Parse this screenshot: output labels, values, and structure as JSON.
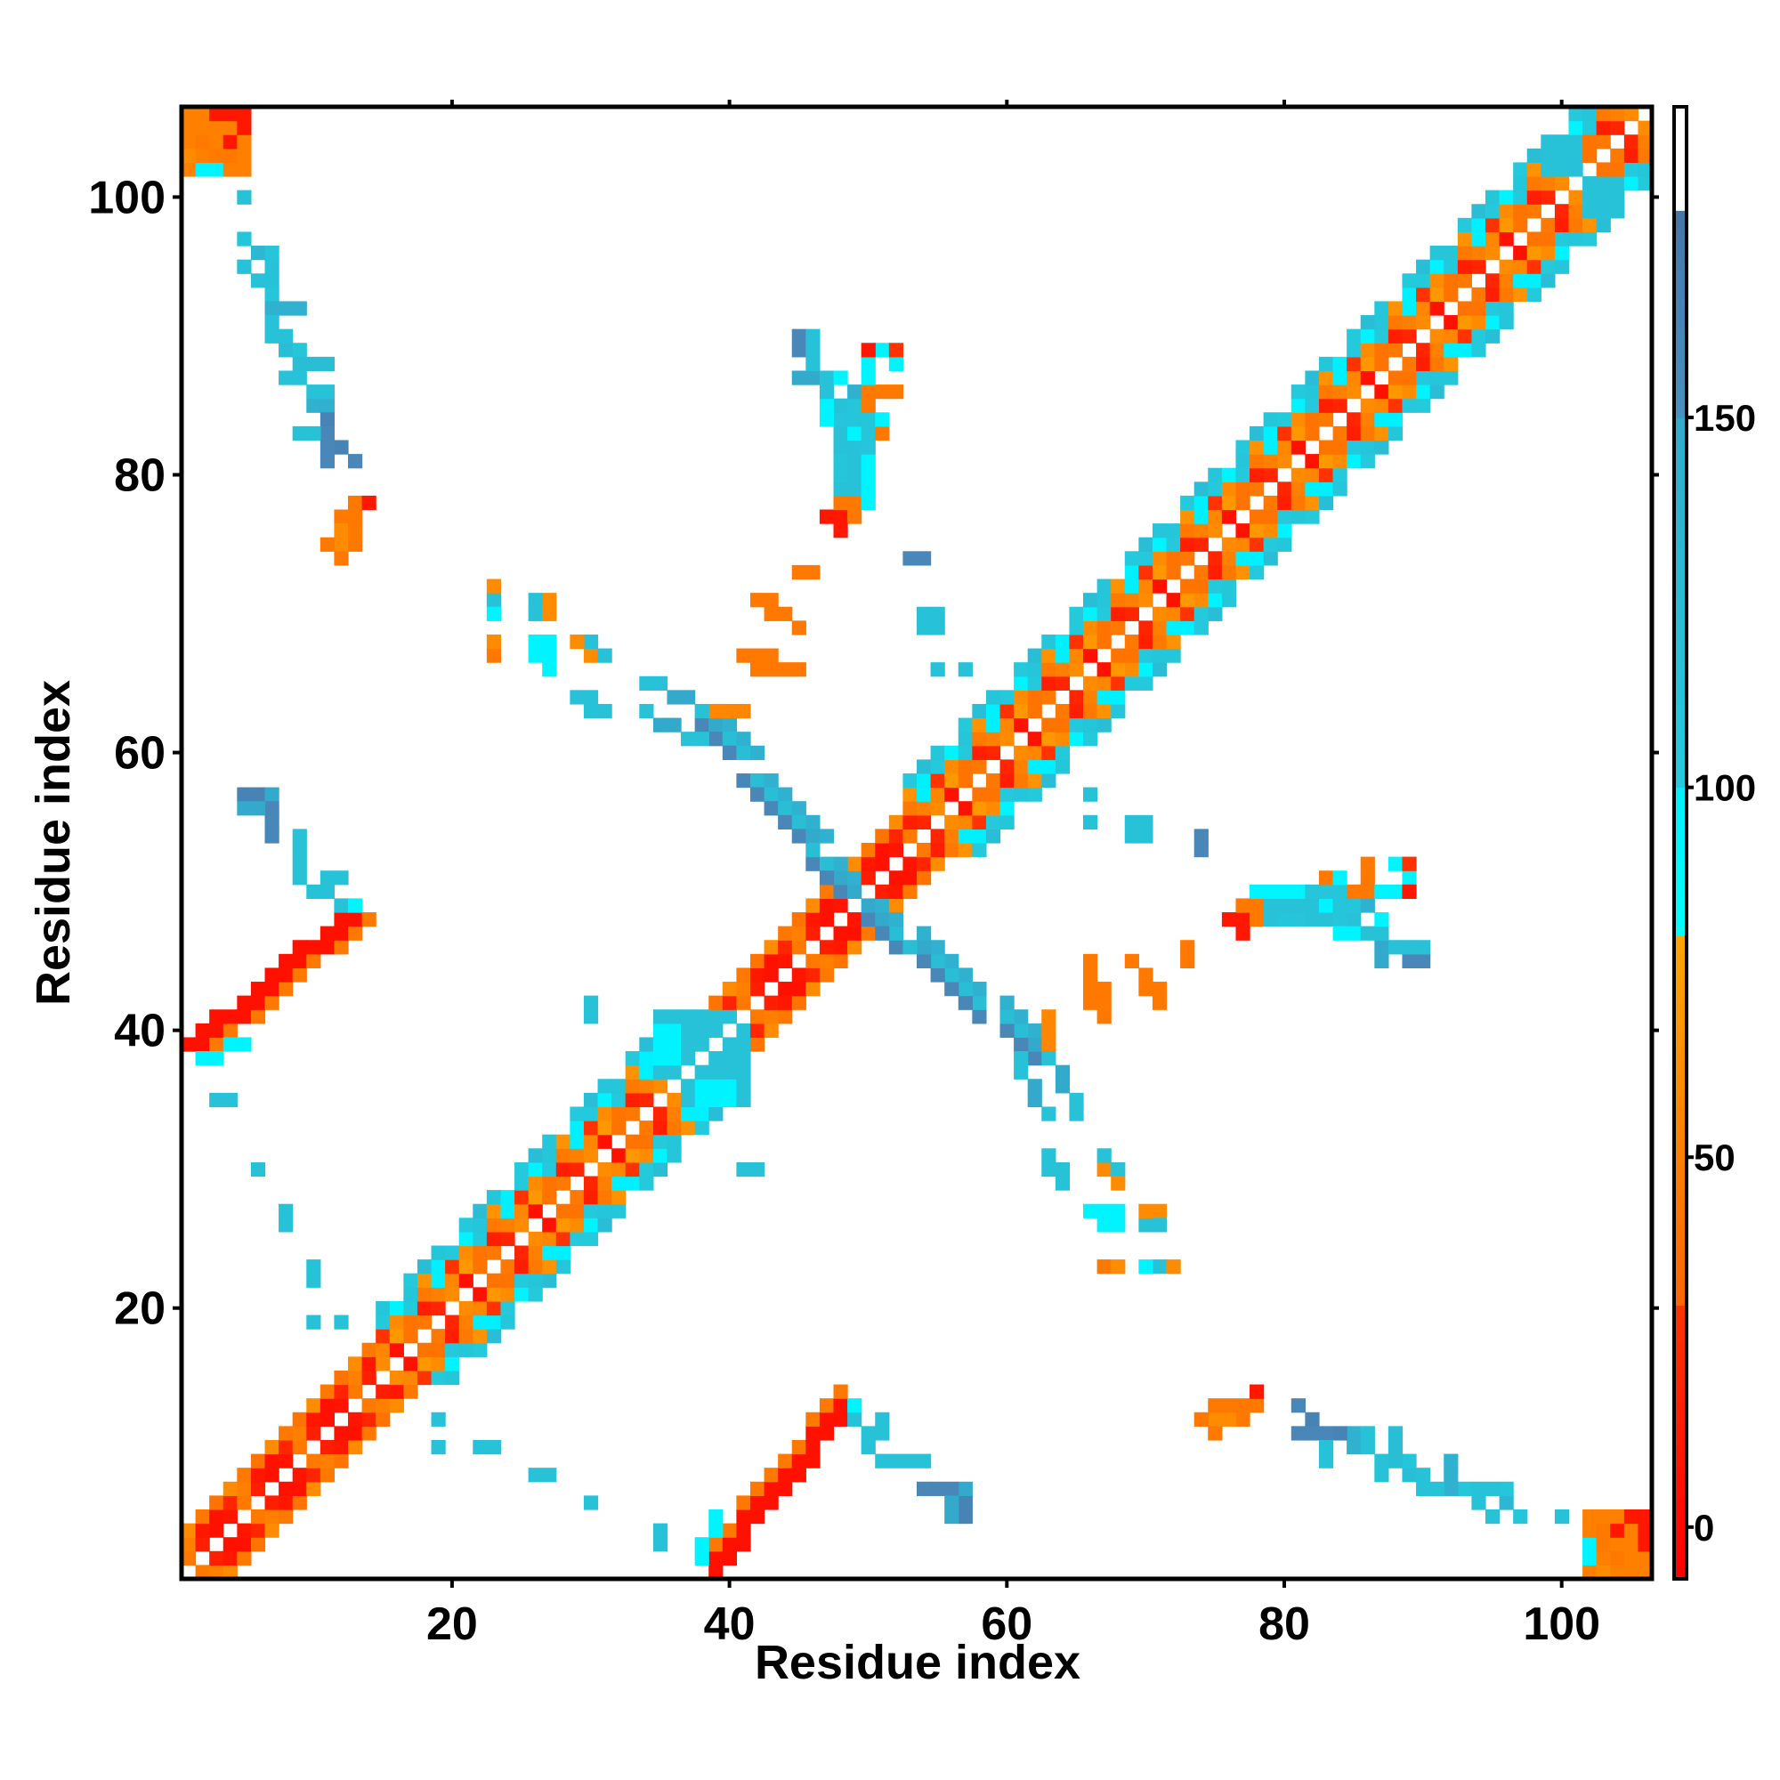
{
  "chart_data": {
    "type": "heatmap",
    "title": "",
    "xlabel": "Residue index",
    "ylabel": "Residue index",
    "n_residues": 106,
    "xlim": [
      0.5,
      106.5
    ],
    "ylim": [
      0.5,
      106.5
    ],
    "xticks": [
      "20",
      "40",
      "60",
      "80",
      "100"
    ],
    "xtick_values": [
      20,
      40,
      60,
      80,
      100
    ],
    "yticks": [
      "20",
      "40",
      "60",
      "80",
      "100"
    ],
    "ytick_values": [
      20,
      40,
      60,
      80,
      100
    ],
    "symmetric": true,
    "colorbar": {
      "range": [
        -7,
        192
      ],
      "ticks": [
        "0",
        "50",
        "100",
        "150"
      ],
      "tick_values": [
        0,
        50,
        100,
        150
      ],
      "stops": [
        {
          "from": -7,
          "to": 30,
          "colors": [
            "#ff0000",
            "#ff3300"
          ]
        },
        {
          "from": 30,
          "to": 80,
          "colors": [
            "#ff6600",
            "#ffa500"
          ]
        },
        {
          "from": 80,
          "to": 100,
          "colors": [
            "#00ffff",
            "#00f0ff"
          ]
        },
        {
          "from": 100,
          "to": 150,
          "colors": [
            "#22ccdd",
            "#33aacc"
          ]
        },
        {
          "from": 150,
          "to": 178,
          "colors": [
            "#4a90c0",
            "#4477aa"
          ]
        },
        {
          "from": 178,
          "to": 192,
          "colors": [
            "#ffffff",
            "#ffffff"
          ]
        }
      ]
    },
    "diagonal_segments": [
      {
        "range": [
          1,
          14
        ],
        "pattern": "strand"
      },
      {
        "range": [
          15,
          36
        ],
        "pattern": "helix"
      },
      {
        "range": [
          37,
          47
        ],
        "pattern": "strand"
      },
      {
        "range": [
          48,
          52
        ],
        "pattern": "strand"
      },
      {
        "range": [
          53,
          106
        ],
        "pattern": "helix"
      }
    ],
    "patterns": {
      "strand": [
        [
          5,
          15,
          45,
          8
        ],
        [
          10,
          50,
          20,
          5
        ],
        [
          40,
          60,
          45
        ]
      ],
      "helix": [
        [
          5,
          20,
          40,
          60,
          45
        ],
        [
          40,
          55,
          15,
          70,
          50
        ],
        [
          45,
          60,
          100,
          105,
          30
        ],
        [
          100,
          110,
          105,
          65,
          95
        ],
        [
          110,
          120,
          105,
          0
        ]
      ]
    },
    "parallel_strips": [
      {
        "x": [
          1,
          12
        ],
        "y": [
          39,
          48
        ],
        "width": 3,
        "inner_value": 5,
        "outer_value": 45
      }
    ],
    "anti_strips": [
      {
        "x": [
          38,
          48
        ],
        "y": [
          62,
          50
        ],
        "width": 3,
        "value": 160
      },
      {
        "x": [
          40,
          47
        ],
        "y": [
          61,
          52
        ],
        "width": 1,
        "value": 120
      }
    ],
    "blocks": [
      [
        1,
        5,
        102,
        106,
        50
      ],
      [
        3,
        5,
        106,
        106,
        10
      ],
      [
        2,
        3,
        102,
        102,
        110
      ],
      [
        35,
        41,
        37,
        41,
        115
      ],
      [
        38,
        40,
        35,
        36,
        95
      ],
      [
        39,
        41,
        63,
        63,
        55
      ],
      [
        42,
        45,
        66,
        66,
        45
      ],
      [
        50,
        52,
        86,
        86,
        45
      ],
      [
        48,
        50,
        80,
        85,
        110
      ],
      [
        49,
        50,
        78,
        81,
        95
      ],
      [
        99,
        101,
        102,
        104,
        115
      ]
    ],
    "cells": [
      [
        5,
        100,
        120
      ],
      [
        5,
        97,
        110
      ],
      [
        6,
        96,
        130
      ],
      [
        7,
        96,
        110
      ],
      [
        7,
        93,
        110
      ],
      [
        7,
        92,
        140
      ],
      [
        8,
        92,
        140
      ],
      [
        9,
        92,
        140
      ],
      [
        8,
        89,
        120
      ],
      [
        9,
        89,
        110
      ],
      [
        9,
        88,
        120
      ],
      [
        10,
        88,
        120
      ],
      [
        11,
        88,
        120
      ],
      [
        10,
        85,
        140
      ],
      [
        11,
        85,
        140
      ],
      [
        11,
        84,
        165
      ],
      [
        12,
        82,
        165
      ],
      [
        12,
        77,
        45
      ],
      [
        12,
        76,
        40
      ],
      [
        13,
        77,
        15
      ],
      [
        12,
        75,
        60
      ],
      [
        11,
        75,
        45
      ],
      [
        12,
        74,
        45
      ],
      [
        13,
        78,
        45
      ],
      [
        5,
        57,
        165
      ],
      [
        6,
        57,
        165
      ],
      [
        7,
        57,
        150
      ],
      [
        7,
        56,
        165
      ],
      [
        7,
        55,
        165
      ],
      [
        9,
        52,
        115
      ],
      [
        9,
        51,
        115
      ],
      [
        10,
        50,
        115
      ],
      [
        11,
        50,
        115
      ],
      [
        12,
        49,
        115
      ],
      [
        13,
        49,
        115
      ],
      [
        4,
        39,
        95
      ],
      [
        5,
        39,
        95
      ],
      [
        4,
        35,
        115
      ],
      [
        6,
        30,
        115
      ],
      [
        8,
        26,
        115
      ],
      [
        10,
        23,
        115
      ],
      [
        10,
        22,
        115
      ],
      [
        10,
        19,
        115
      ],
      [
        12,
        19,
        115
      ],
      [
        45,
        90,
        160
      ],
      [
        45,
        89,
        160
      ],
      [
        45,
        87,
        150
      ],
      [
        46,
        87,
        150
      ],
      [
        47,
        87,
        115
      ],
      [
        48,
        87,
        95
      ],
      [
        49,
        86,
        140
      ],
      [
        50,
        86,
        95
      ],
      [
        51,
        89,
        95
      ],
      [
        52,
        88,
        95
      ],
      [
        52,
        89,
        30
      ],
      [
        47,
        77,
        10
      ],
      [
        48,
        77,
        10
      ],
      [
        48,
        78,
        45
      ],
      [
        49,
        83,
        95
      ],
      [
        47,
        84,
        95
      ],
      [
        47,
        85,
        95
      ],
      [
        51,
        83,
        45
      ],
      [
        51,
        84,
        95
      ],
      [
        49,
        82,
        115
      ],
      [
        77,
        49,
        45
      ],
      [
        78,
        49,
        45
      ],
      [
        79,
        49,
        115
      ],
      [
        80,
        49,
        115
      ],
      [
        81,
        49,
        115
      ],
      [
        82,
        48,
        115
      ],
      [
        83,
        48,
        115
      ],
      [
        84,
        48,
        110
      ],
      [
        85,
        48,
        115
      ],
      [
        83,
        51,
        45
      ],
      [
        86,
        51,
        45
      ],
      [
        86,
        50,
        45
      ],
      [
        85,
        50,
        45
      ],
      [
        87,
        50,
        95
      ],
      [
        88,
        50,
        95
      ],
      [
        89,
        50,
        10
      ],
      [
        87,
        48,
        95
      ],
      [
        86,
        47,
        115
      ],
      [
        88,
        46,
        115
      ],
      [
        89,
        46,
        115
      ],
      [
        90,
        46,
        115
      ],
      [
        76,
        48,
        10
      ],
      [
        73,
        46,
        45
      ],
      [
        79,
        48,
        115
      ],
      [
        23,
        71,
        60
      ],
      [
        23,
        70,
        95
      ],
      [
        26,
        70,
        115
      ],
      [
        27,
        70,
        60
      ],
      [
        23,
        67,
        45
      ],
      [
        26,
        67,
        95
      ],
      [
        27,
        67,
        95
      ],
      [
        27,
        66,
        95
      ],
      [
        30,
        67,
        60
      ],
      [
        31,
        67,
        115
      ],
      [
        30,
        63,
        115
      ],
      [
        31,
        63,
        115
      ],
      [
        34,
        63,
        115
      ],
      [
        35,
        62,
        150
      ],
      [
        36,
        62,
        150
      ],
      [
        37,
        61,
        115
      ],
      [
        38,
        61,
        115
      ],
      [
        44,
        70,
        45
      ],
      [
        45,
        69,
        45
      ],
      [
        45,
        73,
        45
      ],
      [
        53,
        74,
        160
      ],
      [
        54,
        70,
        115
      ],
      [
        55,
        70,
        115
      ],
      [
        54,
        69,
        115
      ],
      [
        55,
        66,
        115
      ],
      [
        57,
        66,
        115
      ],
      [
        66,
        57,
        115
      ],
      [
        66,
        55,
        115
      ],
      [
        69,
        55,
        115
      ],
      [
        70,
        55,
        115
      ],
      [
        69,
        54,
        115
      ],
      [
        74,
        54,
        160
      ],
      [
        67,
        43,
        45
      ],
      [
        67,
        42,
        45
      ],
      [
        67,
        41,
        45
      ],
      [
        70,
        43,
        45
      ],
      [
        71,
        43,
        45
      ],
      [
        71,
        42,
        45
      ],
      [
        63,
        38,
        115
      ],
      [
        64,
        37,
        150
      ],
      [
        64,
        36,
        150
      ],
      [
        65,
        35,
        115
      ],
      [
        65,
        34,
        115
      ],
      [
        30,
        41,
        115
      ],
      [
        42,
        30,
        115
      ],
      [
        64,
        30,
        115
      ],
      [
        64,
        29,
        115
      ],
      [
        68,
        30,
        115
      ],
      [
        68,
        29,
        60
      ],
      [
        67,
        27,
        95
      ],
      [
        68,
        27,
        95
      ],
      [
        68,
        26,
        95
      ],
      [
        71,
        27,
        60
      ],
      [
        71,
        26,
        115
      ],
      [
        68,
        23,
        60
      ],
      [
        71,
        23,
        115
      ],
      [
        72,
        23,
        60
      ],
      [
        75,
        13,
        45
      ],
      [
        76,
        13,
        45
      ],
      [
        77,
        13,
        45
      ],
      [
        76,
        12,
        60
      ],
      [
        74,
        12,
        45
      ],
      [
        75,
        12,
        60
      ],
      [
        78,
        14,
        10
      ],
      [
        81,
        13,
        160
      ],
      [
        81,
        11,
        160
      ],
      [
        82,
        11,
        160
      ],
      [
        83,
        11,
        160
      ],
      [
        83,
        10,
        115
      ],
      [
        83,
        9,
        115
      ],
      [
        86,
        11,
        115
      ],
      [
        86,
        10,
        115
      ],
      [
        87,
        9,
        115
      ],
      [
        87,
        8,
        115
      ],
      [
        90,
        8,
        115
      ],
      [
        90,
        7,
        115
      ],
      [
        91,
        7,
        115
      ],
      [
        94,
        7,
        115
      ],
      [
        95,
        7,
        115
      ],
      [
        94,
        6,
        115
      ],
      [
        95,
        5,
        115
      ],
      [
        100,
        5,
        115
      ],
      [
        54,
        7,
        160
      ],
      [
        55,
        7,
        160
      ],
      [
        56,
        7,
        160
      ],
      [
        56,
        6,
        150
      ],
      [
        56,
        5,
        150
      ],
      [
        49,
        13,
        95
      ],
      [
        51,
        12,
        115
      ],
      [
        51,
        11,
        115
      ],
      [
        52,
        9,
        115
      ],
      [
        53,
        9,
        115
      ],
      [
        54,
        9,
        115
      ],
      [
        35,
        3,
        115
      ],
      [
        38,
        3,
        95
      ],
      [
        38,
        2,
        95
      ],
      [
        30,
        6,
        115
      ],
      [
        27,
        8,
        115
      ],
      [
        19,
        12,
        115
      ],
      [
        19,
        10,
        115
      ],
      [
        22,
        10,
        115
      ],
      [
        23,
        10,
        115
      ],
      [
        104,
        4,
        10
      ],
      [
        103,
        4,
        45
      ],
      [
        103,
        3,
        45
      ],
      [
        102,
        3,
        95
      ],
      [
        104,
        2,
        45
      ],
      [
        102,
        2,
        95
      ],
      [
        103,
        1,
        60
      ],
      [
        105,
        5,
        10
      ],
      [
        106,
        5,
        10
      ]
    ]
  }
}
